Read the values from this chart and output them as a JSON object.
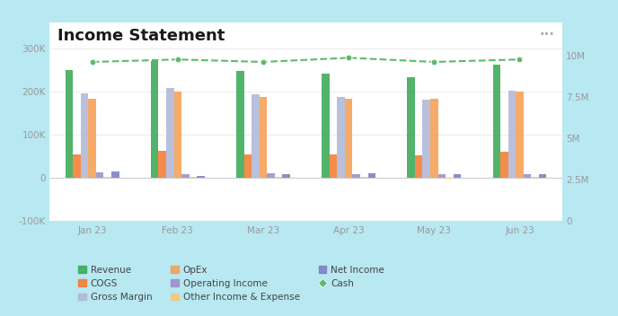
{
  "title": "Income Statement",
  "months": [
    "Jan 23",
    "Feb 23",
    "Mar 23",
    "Apr 23",
    "May 23",
    "Jun 23"
  ],
  "revenue": [
    250000,
    270000,
    248000,
    242000,
    232000,
    262000
  ],
  "cogs": [
    55000,
    62000,
    55000,
    55000,
    52000,
    60000
  ],
  "gross_margin": [
    195000,
    208000,
    193000,
    187000,
    180000,
    202000
  ],
  "opex": [
    183000,
    200000,
    188000,
    183000,
    183000,
    200000
  ],
  "operating_income": [
    12000,
    8000,
    10000,
    9000,
    8000,
    9000
  ],
  "other_income": [
    2000,
    2000,
    2000,
    2000,
    -2000,
    2000
  ],
  "net_income": [
    14000,
    5000,
    8000,
    10000,
    8000,
    8000
  ],
  "cash": [
    9600000,
    9750000,
    9600000,
    9850000,
    9600000,
    9750000
  ],
  "colors": {
    "revenue": "#3aaa55",
    "cogs": "#f47c30",
    "gross_margin": "#b0b8d8",
    "opex": "#f5a053",
    "operating_income": "#9b90c8",
    "other_income": "#f5c87a",
    "net_income": "#7b7fc4",
    "cash": "#5fba6a"
  },
  "background": "#ffffff",
  "outer_background": "#b8e8f2",
  "ylim_left": [
    -100000,
    360000
  ],
  "ylim_right": [
    0,
    12000000
  ],
  "yticks_left": [
    -100000,
    0,
    100000,
    200000,
    300000
  ],
  "ytick_labels_left": [
    "-100K",
    "0",
    "100K",
    "200K",
    "300K"
  ],
  "yticks_right": [
    0,
    2500000,
    5000000,
    7500000,
    10000000
  ],
  "ytick_labels_right": [
    "0",
    "2.5M",
    "5M",
    "7.5M",
    "10M"
  ],
  "title_fontsize": 13,
  "tick_fontsize": 7.5,
  "legend_fontsize": 7.5
}
